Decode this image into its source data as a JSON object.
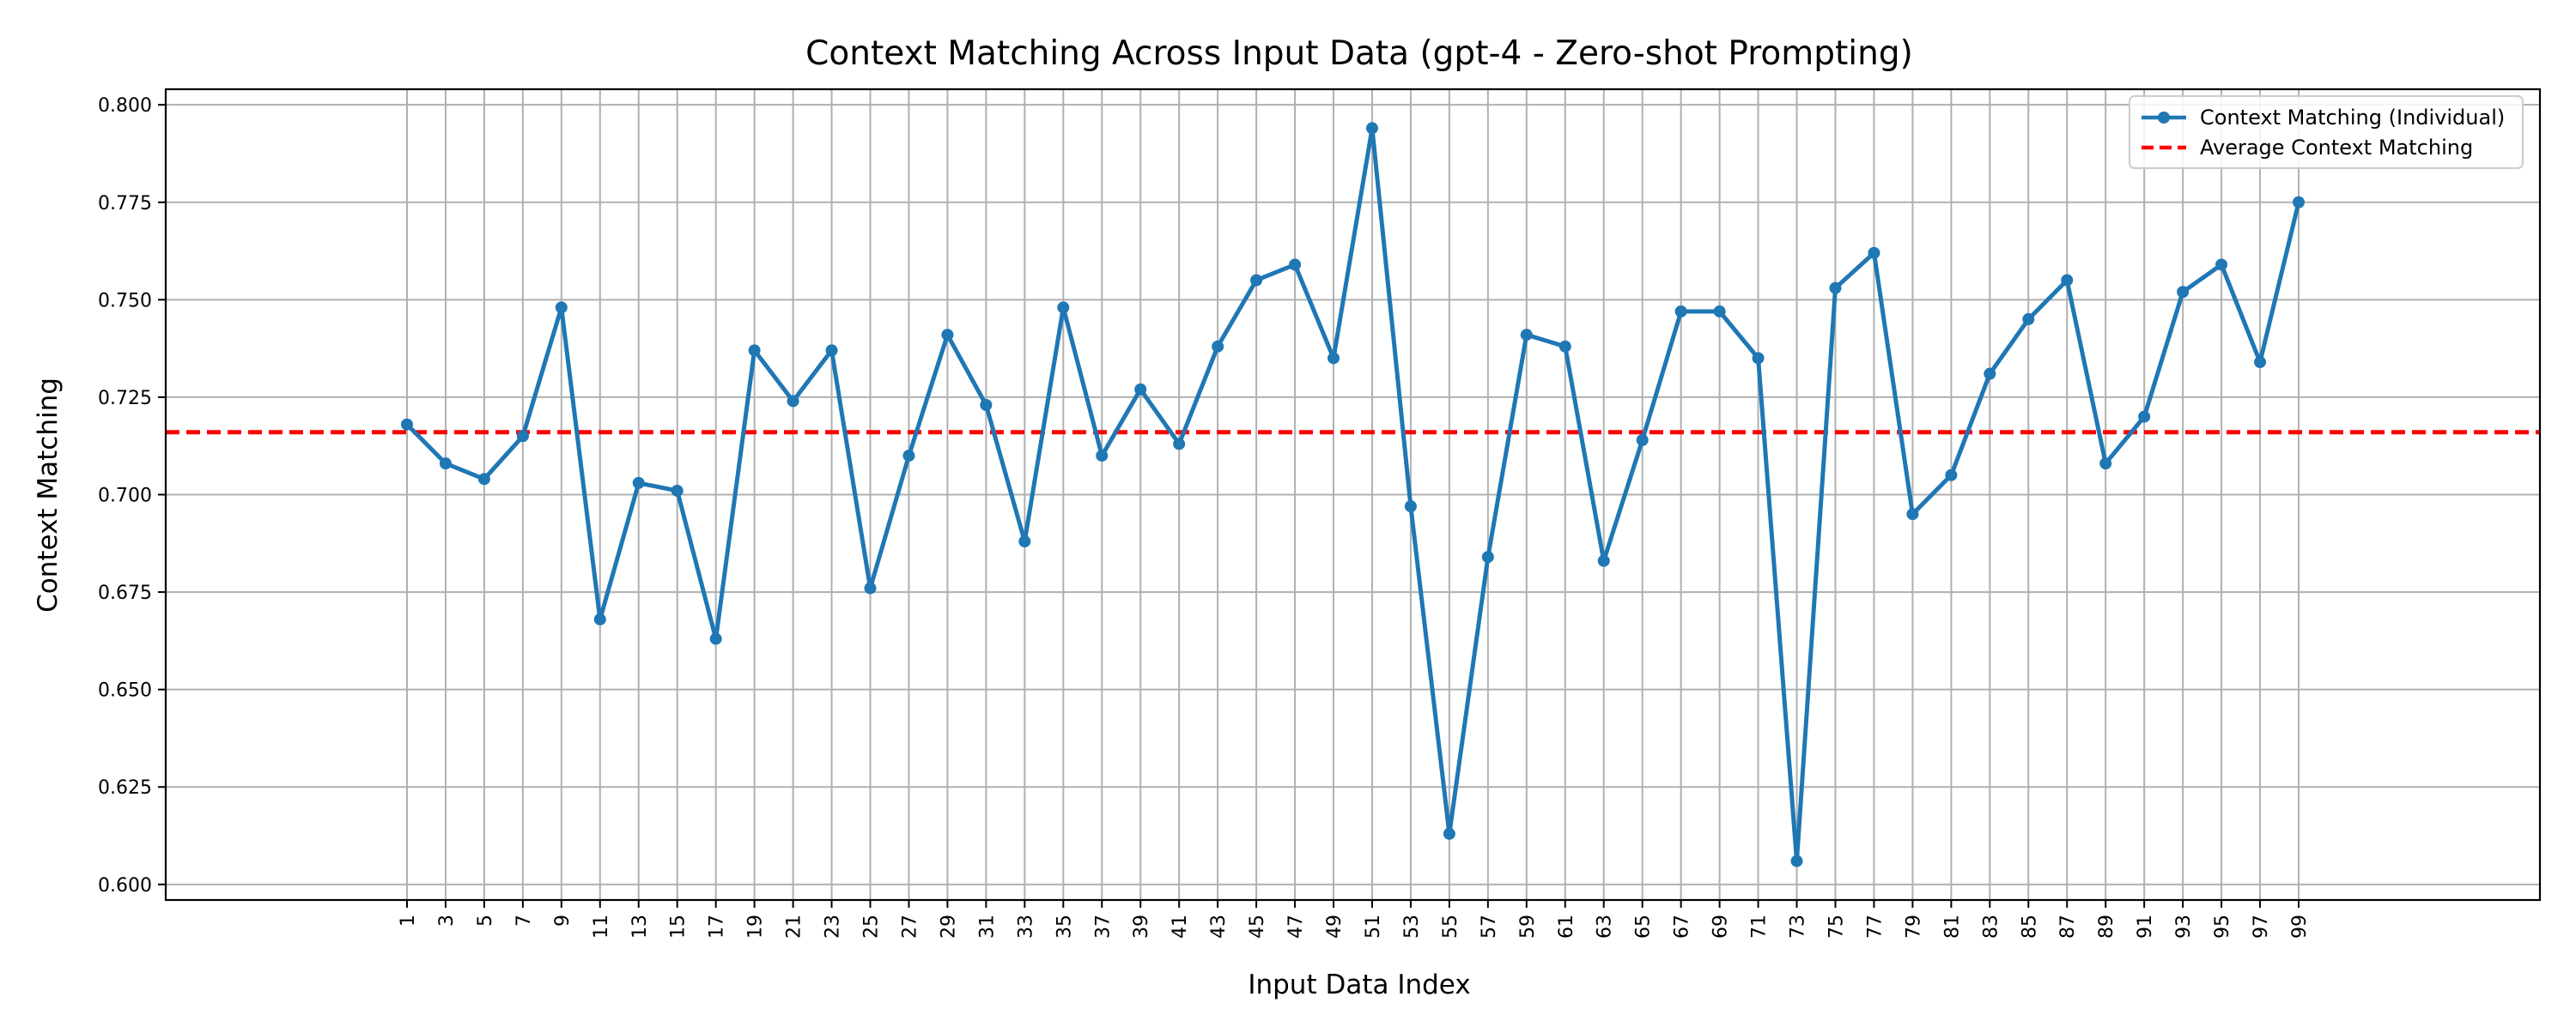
{
  "chart_data": {
    "type": "line",
    "title": "Context Matching Across Input Data (gpt-4 - Zero-shot Prompting)",
    "xlabel": "Input Data Index",
    "ylabel": "Context Matching",
    "x": [
      1,
      3,
      5,
      7,
      9,
      11,
      13,
      15,
      17,
      19,
      21,
      23,
      25,
      27,
      29,
      31,
      33,
      35,
      37,
      39,
      41,
      43,
      45,
      47,
      49,
      51,
      53,
      55,
      57,
      59,
      61,
      63,
      65,
      67,
      69,
      71,
      73,
      75,
      77,
      79,
      81,
      83,
      85,
      87,
      89,
      91,
      93,
      95,
      97,
      99
    ],
    "x_tick_labels": [
      "1",
      "3",
      "5",
      "7",
      "9",
      "11",
      "13",
      "15",
      "17",
      "19",
      "21",
      "23",
      "25",
      "27",
      "29",
      "31",
      "33",
      "35",
      "37",
      "39",
      "41",
      "43",
      "45",
      "47",
      "49",
      "51",
      "53",
      "55",
      "57",
      "59",
      "61",
      "63",
      "65",
      "67",
      "69",
      "71",
      "73",
      "75",
      "77",
      "79",
      "81",
      "83",
      "85",
      "87",
      "89",
      "91",
      "93",
      "95",
      "97",
      "99"
    ],
    "xlim": [
      -11.5,
      111.5
    ],
    "ylim": [
      0.596,
      0.804
    ],
    "y_ticks": [
      0.6,
      0.625,
      0.65,
      0.675,
      0.7,
      0.725,
      0.75,
      0.775,
      0.8
    ],
    "y_tick_labels": [
      "0.600",
      "0.625",
      "0.650",
      "0.675",
      "0.700",
      "0.725",
      "0.750",
      "0.775",
      "0.800"
    ],
    "grid": true,
    "legend_position": "top-right",
    "series": [
      {
        "name": "Context Matching (Individual)",
        "color": "#1f77b4",
        "style": "solid-with-markers",
        "values": [
          0.718,
          0.708,
          0.704,
          0.715,
          0.748,
          0.668,
          0.703,
          0.701,
          0.663,
          0.737,
          0.724,
          0.737,
          0.676,
          0.71,
          0.741,
          0.723,
          0.688,
          0.748,
          0.71,
          0.727,
          0.713,
          0.738,
          0.755,
          0.759,
          0.735,
          0.794,
          0.697,
          0.613,
          0.684,
          0.741,
          0.738,
          0.683,
          0.714,
          0.747,
          0.747,
          0.735,
          0.606,
          0.753,
          0.762,
          0.695,
          0.705,
          0.731,
          0.745,
          0.755,
          0.708,
          0.72,
          0.752,
          0.759,
          0.734,
          0.775
        ]
      }
    ],
    "reference_lines": [
      {
        "name": "Average Context Matching",
        "color": "#ff0000",
        "style": "dashed",
        "value": 0.716
      }
    ]
  }
}
